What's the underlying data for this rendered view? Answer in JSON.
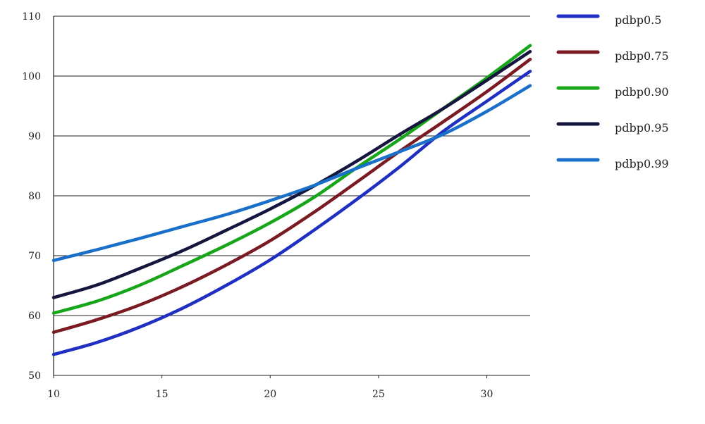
{
  "chart_data": {
    "type": "line",
    "title": "",
    "xlabel": "",
    "ylabel": "",
    "xlim": [
      10,
      32
    ],
    "ylim": [
      50,
      110
    ],
    "x_ticks": [
      10,
      15,
      20,
      25,
      30
    ],
    "y_ticks": [
      50,
      60,
      70,
      80,
      90,
      100,
      110
    ],
    "grid": "horizontal",
    "legend_position": "right",
    "series": [
      {
        "name": "pdbp0.5",
        "color": "#1f2fc2",
        "x": [
          10,
          12,
          14,
          16,
          18,
          20,
          22,
          24,
          26,
          28,
          30,
          32
        ],
        "y": [
          53.5,
          55.5,
          58.1,
          61.3,
          65.1,
          69.3,
          74.2,
          79.4,
          84.9,
          90.8,
          95.8,
          100.8
        ]
      },
      {
        "name": "pdbp0.75",
        "color": "#7a1a22",
        "x": [
          10,
          12,
          14,
          16,
          18,
          20,
          22,
          24,
          26,
          28,
          30,
          32
        ],
        "y": [
          57.2,
          59.3,
          61.8,
          64.9,
          68.5,
          72.5,
          77.2,
          82.3,
          87.5,
          92.4,
          97.4,
          102.8
        ]
      },
      {
        "name": "pdbp0.90",
        "color": "#17a61a",
        "x": [
          10,
          12,
          14,
          16,
          18,
          20,
          22,
          24,
          26,
          28,
          30,
          32
        ],
        "y": [
          60.4,
          62.4,
          65.1,
          68.4,
          71.8,
          75.5,
          79.7,
          84.7,
          89.5,
          94.6,
          99.7,
          105.1
        ]
      },
      {
        "name": "pdbp0.95",
        "color": "#15163d",
        "x": [
          10,
          12,
          14,
          16,
          18,
          20,
          22,
          24,
          26,
          28,
          30,
          32
        ],
        "y": [
          63.0,
          65.1,
          67.9,
          70.9,
          74.3,
          77.8,
          81.6,
          85.8,
          90.3,
          94.6,
          99.3,
          104.1
        ]
      },
      {
        "name": "pdbp0.99",
        "color": "#1a6fc9",
        "x": [
          10,
          12,
          14,
          16,
          18,
          20,
          22,
          24,
          26,
          28,
          30,
          32
        ],
        "y": [
          69.2,
          71.0,
          72.9,
          74.9,
          76.9,
          79.2,
          81.7,
          84.6,
          87.4,
          90.3,
          94.1,
          98.4
        ]
      }
    ]
  }
}
